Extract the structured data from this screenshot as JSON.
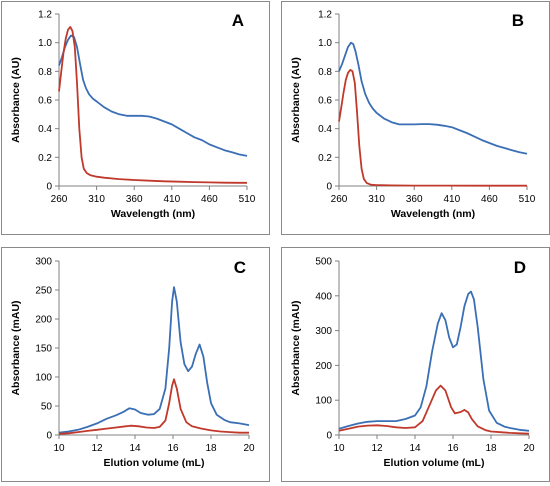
{
  "chart_data": [
    {
      "panel": "A",
      "type": "line",
      "xlabel": "Wavelength  (nm)",
      "ylabel": "Absorbance (AU)",
      "xlim": [
        260,
        510
      ],
      "ylim": [
        0,
        1.2
      ],
      "xticks": [
        260,
        310,
        360,
        410,
        460,
        510
      ],
      "yticks": [
        0,
        0.2,
        0.4,
        0.6,
        0.8,
        1.0,
        1.2
      ],
      "ytick_labels": [
        "0",
        "0.2",
        "0.4",
        "0.6",
        "0.8",
        "1.0",
        "1.2"
      ],
      "series": [
        {
          "color": "#3a6fb5",
          "points": [
            [
              260,
              0.84
            ],
            [
              264,
              0.9
            ],
            [
              268,
              0.97
            ],
            [
              272,
              1.02
            ],
            [
              276,
              1.05
            ],
            [
              280,
              1.04
            ],
            [
              284,
              0.97
            ],
            [
              288,
              0.85
            ],
            [
              292,
              0.74
            ],
            [
              296,
              0.68
            ],
            [
              300,
              0.64
            ],
            [
              305,
              0.61
            ],
            [
              310,
              0.59
            ],
            [
              320,
              0.55
            ],
            [
              330,
              0.52
            ],
            [
              340,
              0.5
            ],
            [
              350,
              0.49
            ],
            [
              360,
              0.49
            ],
            [
              370,
              0.49
            ],
            [
              380,
              0.485
            ],
            [
              390,
              0.47
            ],
            [
              400,
              0.45
            ],
            [
              410,
              0.43
            ],
            [
              420,
              0.4
            ],
            [
              430,
              0.37
            ],
            [
              440,
              0.34
            ],
            [
              450,
              0.32
            ],
            [
              460,
              0.29
            ],
            [
              470,
              0.27
            ],
            [
              480,
              0.25
            ],
            [
              490,
              0.235
            ],
            [
              500,
              0.22
            ],
            [
              510,
              0.21
            ]
          ]
        },
        {
          "color": "#c0392b",
          "points": [
            [
              260,
              0.66
            ],
            [
              263,
              0.8
            ],
            [
              266,
              0.93
            ],
            [
              269,
              1.03
            ],
            [
              272,
              1.09
            ],
            [
              275,
              1.11
            ],
            [
              278,
              1.08
            ],
            [
              281,
              0.97
            ],
            [
              284,
              0.72
            ],
            [
              287,
              0.4
            ],
            [
              290,
              0.2
            ],
            [
              293,
              0.12
            ],
            [
              297,
              0.09
            ],
            [
              302,
              0.075
            ],
            [
              310,
              0.065
            ],
            [
              320,
              0.058
            ],
            [
              340,
              0.048
            ],
            [
              360,
              0.042
            ],
            [
              380,
              0.037
            ],
            [
              400,
              0.033
            ],
            [
              420,
              0.03
            ],
            [
              440,
              0.027
            ],
            [
              460,
              0.025
            ],
            [
              480,
              0.023
            ],
            [
              500,
              0.022
            ],
            [
              510,
              0.022
            ]
          ]
        }
      ]
    },
    {
      "panel": "B",
      "type": "line",
      "xlabel": "Wavelength  (nm)",
      "ylabel": "Absorbance (AU)",
      "xlim": [
        260,
        510
      ],
      "ylim": [
        0,
        1.2
      ],
      "xticks": [
        260,
        310,
        360,
        410,
        460,
        510
      ],
      "yticks": [
        0,
        0.2,
        0.4,
        0.6,
        0.8,
        1.0,
        1.2
      ],
      "ytick_labels": [
        "0",
        "0.2",
        "0.4",
        "0.6",
        "0.8",
        "1.0",
        "1.2"
      ],
      "series": [
        {
          "color": "#3a6fb5",
          "points": [
            [
              260,
              0.8
            ],
            [
              264,
              0.85
            ],
            [
              268,
              0.91
            ],
            [
              272,
              0.97
            ],
            [
              276,
              1.0
            ],
            [
              279,
              0.99
            ],
            [
              282,
              0.94
            ],
            [
              286,
              0.84
            ],
            [
              290,
              0.73
            ],
            [
              295,
              0.64
            ],
            [
              300,
              0.58
            ],
            [
              305,
              0.54
            ],
            [
              310,
              0.51
            ],
            [
              320,
              0.47
            ],
            [
              330,
              0.445
            ],
            [
              340,
              0.43
            ],
            [
              350,
              0.43
            ],
            [
              360,
              0.43
            ],
            [
              370,
              0.432
            ],
            [
              380,
              0.432
            ],
            [
              390,
              0.428
            ],
            [
              400,
              0.42
            ],
            [
              410,
              0.41
            ],
            [
              420,
              0.39
            ],
            [
              430,
              0.37
            ],
            [
              440,
              0.345
            ],
            [
              450,
              0.32
            ],
            [
              460,
              0.3
            ],
            [
              470,
              0.28
            ],
            [
              480,
              0.265
            ],
            [
              490,
              0.25
            ],
            [
              500,
              0.235
            ],
            [
              510,
              0.225
            ]
          ]
        },
        {
          "color": "#c0392b",
          "points": [
            [
              260,
              0.45
            ],
            [
              263,
              0.55
            ],
            [
              266,
              0.65
            ],
            [
              269,
              0.74
            ],
            [
              272,
              0.79
            ],
            [
              275,
              0.81
            ],
            [
              278,
              0.8
            ],
            [
              281,
              0.72
            ],
            [
              284,
              0.52
            ],
            [
              287,
              0.28
            ],
            [
              290,
              0.12
            ],
            [
              293,
              0.05
            ],
            [
              297,
              0.02
            ],
            [
              302,
              0.01
            ],
            [
              310,
              0.006
            ],
            [
              330,
              0.004
            ],
            [
              360,
              0.003
            ],
            [
              400,
              0.003
            ],
            [
              450,
              0.002
            ],
            [
              510,
              0.002
            ]
          ]
        }
      ]
    },
    {
      "panel": "C",
      "type": "line",
      "xlabel": "Elution volume (mL)",
      "ylabel": "Absorbance  (mAU)",
      "xlim": [
        10,
        20
      ],
      "ylim": [
        0,
        300
      ],
      "xticks": [
        10,
        12,
        14,
        16,
        18,
        20
      ],
      "yticks": [
        0,
        50,
        100,
        150,
        200,
        250,
        300
      ],
      "ytick_labels": [
        "0",
        "50",
        "100",
        "150",
        "200",
        "250",
        "300"
      ],
      "series": [
        {
          "color": "#3a6fb5",
          "points": [
            [
              10,
              4
            ],
            [
              10.5,
              6
            ],
            [
              11,
              9
            ],
            [
              11.5,
              14
            ],
            [
              12,
              20
            ],
            [
              12.5,
              28
            ],
            [
              13,
              34
            ],
            [
              13.4,
              40
            ],
            [
              13.7,
              46
            ],
            [
              14,
              44
            ],
            [
              14.3,
              38
            ],
            [
              14.7,
              35
            ],
            [
              15,
              36
            ],
            [
              15.3,
              45
            ],
            [
              15.6,
              80
            ],
            [
              15.8,
              150
            ],
            [
              15.95,
              230
            ],
            [
              16.05,
              255
            ],
            [
              16.2,
              230
            ],
            [
              16.4,
              160
            ],
            [
              16.6,
              122
            ],
            [
              16.8,
              110
            ],
            [
              17,
              118
            ],
            [
              17.2,
              140
            ],
            [
              17.4,
              156
            ],
            [
              17.6,
              135
            ],
            [
              17.8,
              90
            ],
            [
              18,
              55
            ],
            [
              18.3,
              35
            ],
            [
              18.7,
              26
            ],
            [
              19,
              22
            ],
            [
              19.5,
              20
            ],
            [
              20,
              17
            ]
          ]
        },
        {
          "color": "#c0392b",
          "points": [
            [
              10,
              2
            ],
            [
              10.5,
              3
            ],
            [
              11,
              5
            ],
            [
              11.5,
              7
            ],
            [
              12,
              9
            ],
            [
              12.5,
              11
            ],
            [
              13,
              13
            ],
            [
              13.5,
              15
            ],
            [
              13.8,
              16
            ],
            [
              14.2,
              15
            ],
            [
              14.6,
              13
            ],
            [
              15,
              12
            ],
            [
              15.3,
              14
            ],
            [
              15.6,
              25
            ],
            [
              15.8,
              55
            ],
            [
              15.95,
              85
            ],
            [
              16.05,
              96
            ],
            [
              16.2,
              80
            ],
            [
              16.4,
              45
            ],
            [
              16.7,
              22
            ],
            [
              17,
              15
            ],
            [
              17.5,
              11
            ],
            [
              18,
              8
            ],
            [
              18.5,
              6
            ],
            [
              19,
              5
            ],
            [
              19.5,
              4
            ],
            [
              20,
              4
            ]
          ]
        }
      ]
    },
    {
      "panel": "D",
      "type": "line",
      "xlabel": "Elution volume (mL)",
      "ylabel": "Absorbance  (mAU)",
      "xlim": [
        10,
        20
      ],
      "ylim": [
        0,
        500
      ],
      "xticks": [
        10,
        12,
        14,
        16,
        18,
        20
      ],
      "yticks": [
        0,
        100,
        200,
        300,
        400,
        500
      ],
      "ytick_labels": [
        "0",
        "100",
        "200",
        "300",
        "400",
        "500"
      ],
      "series": [
        {
          "color": "#3a6fb5",
          "points": [
            [
              10,
              18
            ],
            [
              10.5,
              26
            ],
            [
              11,
              33
            ],
            [
              11.5,
              38
            ],
            [
              12,
              40
            ],
            [
              12.5,
              40
            ],
            [
              13,
              40
            ],
            [
              13.5,
              46
            ],
            [
              14,
              56
            ],
            [
              14.3,
              80
            ],
            [
              14.6,
              140
            ],
            [
              14.9,
              240
            ],
            [
              15.2,
              320
            ],
            [
              15.4,
              350
            ],
            [
              15.6,
              330
            ],
            [
              15.8,
              280
            ],
            [
              16,
              252
            ],
            [
              16.2,
              260
            ],
            [
              16.4,
              310
            ],
            [
              16.6,
              370
            ],
            [
              16.8,
              405
            ],
            [
              16.95,
              412
            ],
            [
              17.1,
              390
            ],
            [
              17.3,
              310
            ],
            [
              17.6,
              160
            ],
            [
              17.9,
              70
            ],
            [
              18.3,
              35
            ],
            [
              18.7,
              24
            ],
            [
              19,
              20
            ],
            [
              19.5,
              15
            ],
            [
              20,
              12
            ]
          ]
        },
        {
          "color": "#c0392b",
          "points": [
            [
              10,
              12
            ],
            [
              10.5,
              18
            ],
            [
              11,
              24
            ],
            [
              11.5,
              27
            ],
            [
              12,
              28
            ],
            [
              12.5,
              26
            ],
            [
              13,
              22
            ],
            [
              13.5,
              20
            ],
            [
              14,
              22
            ],
            [
              14.4,
              40
            ],
            [
              14.8,
              90
            ],
            [
              15.1,
              128
            ],
            [
              15.35,
              142
            ],
            [
              15.6,
              128
            ],
            [
              15.9,
              80
            ],
            [
              16.1,
              62
            ],
            [
              16.4,
              66
            ],
            [
              16.6,
              72
            ],
            [
              16.8,
              65
            ],
            [
              17,
              45
            ],
            [
              17.3,
              25
            ],
            [
              17.7,
              14
            ],
            [
              18,
              10
            ],
            [
              18.5,
              8
            ],
            [
              19,
              6
            ],
            [
              19.5,
              5
            ],
            [
              20,
              4
            ]
          ]
        }
      ]
    }
  ]
}
